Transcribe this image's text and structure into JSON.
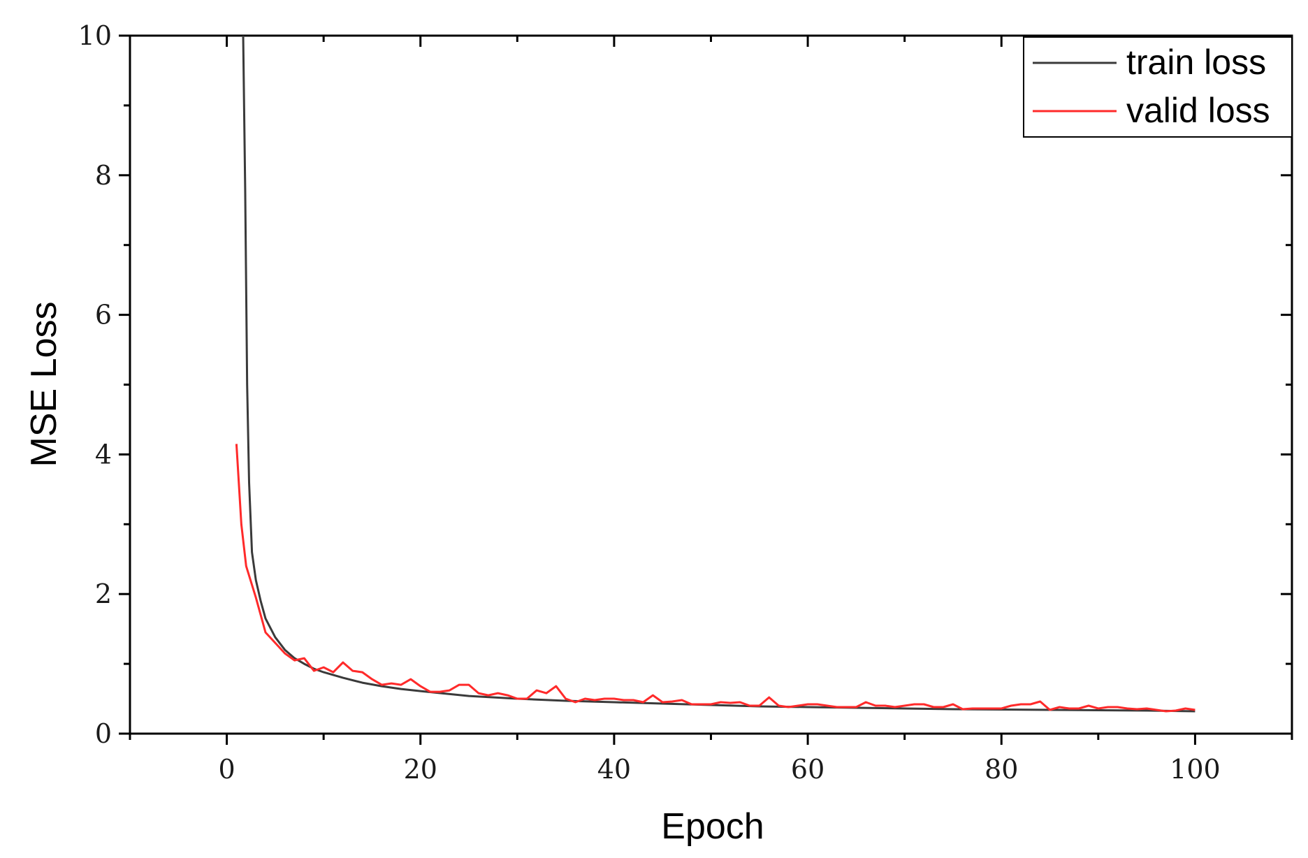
{
  "chart_data": {
    "type": "line",
    "title": "",
    "xlabel": "Epoch",
    "ylabel": "MSE Loss",
    "xlim": [
      -10,
      110
    ],
    "ylim": [
      0,
      10
    ],
    "xticks": [
      0,
      20,
      40,
      60,
      80,
      100
    ],
    "yticks": [
      0,
      2,
      4,
      6,
      8,
      10
    ],
    "x_tick_labels": [
      "0",
      "20",
      "40",
      "60",
      "80",
      "100"
    ],
    "y_tick_labels": [
      "0",
      "2",
      "4",
      "6",
      "8",
      "10"
    ],
    "grid": false,
    "legend": {
      "position": "top-right",
      "entries": [
        "train loss",
        "valid loss"
      ]
    },
    "series": [
      {
        "name": "train loss",
        "color": "#3a3a3a",
        "x": [
          1.5,
          1.9,
          2.1,
          2.3,
          2.6,
          3,
          3.5,
          4,
          5,
          6,
          7,
          8,
          9,
          10,
          12,
          14,
          16,
          18,
          20,
          25,
          30,
          35,
          40,
          45,
          50,
          55,
          60,
          65,
          70,
          75,
          80,
          85,
          90,
          95,
          100
        ],
        "values": [
          12,
          7.8,
          5.0,
          3.6,
          2.6,
          2.2,
          1.9,
          1.65,
          1.38,
          1.2,
          1.08,
          1.0,
          0.93,
          0.88,
          0.8,
          0.73,
          0.68,
          0.64,
          0.61,
          0.54,
          0.5,
          0.47,
          0.45,
          0.43,
          0.41,
          0.39,
          0.38,
          0.37,
          0.36,
          0.35,
          0.345,
          0.34,
          0.335,
          0.33,
          0.32
        ]
      },
      {
        "name": "valid loss",
        "color": "#ff2a2a",
        "x": [
          1,
          1.5,
          2,
          3,
          4,
          5,
          6,
          7,
          8,
          9,
          10,
          11,
          12,
          13,
          14,
          15,
          16,
          17,
          18,
          19,
          20,
          21,
          22,
          23,
          24,
          25,
          26,
          27,
          28,
          29,
          30,
          31,
          32,
          33,
          34,
          35,
          36,
          37,
          38,
          39,
          40,
          41,
          42,
          43,
          44,
          45,
          46,
          47,
          48,
          49,
          50,
          51,
          52,
          53,
          54,
          55,
          56,
          57,
          58,
          59,
          60,
          61,
          62,
          63,
          64,
          65,
          66,
          67,
          68,
          69,
          70,
          71,
          72,
          73,
          74,
          75,
          76,
          77,
          78,
          79,
          80,
          81,
          82,
          83,
          84,
          85,
          86,
          87,
          88,
          89,
          90,
          91,
          92,
          93,
          94,
          95,
          96,
          97,
          98,
          99,
          100
        ],
        "values": [
          4.15,
          3.0,
          2.4,
          1.95,
          1.45,
          1.3,
          1.15,
          1.05,
          1.08,
          0.9,
          0.95,
          0.88,
          1.02,
          0.9,
          0.88,
          0.78,
          0.7,
          0.72,
          0.7,
          0.78,
          0.68,
          0.6,
          0.6,
          0.62,
          0.7,
          0.7,
          0.58,
          0.55,
          0.58,
          0.55,
          0.5,
          0.5,
          0.62,
          0.58,
          0.68,
          0.5,
          0.45,
          0.5,
          0.48,
          0.5,
          0.5,
          0.48,
          0.48,
          0.45,
          0.55,
          0.45,
          0.46,
          0.48,
          0.42,
          0.42,
          0.42,
          0.45,
          0.44,
          0.45,
          0.4,
          0.4,
          0.52,
          0.4,
          0.38,
          0.4,
          0.42,
          0.42,
          0.4,
          0.38,
          0.38,
          0.38,
          0.45,
          0.4,
          0.4,
          0.38,
          0.4,
          0.42,
          0.42,
          0.38,
          0.38,
          0.42,
          0.35,
          0.36,
          0.36,
          0.36,
          0.36,
          0.4,
          0.42,
          0.42,
          0.46,
          0.34,
          0.38,
          0.36,
          0.36,
          0.4,
          0.36,
          0.38,
          0.38,
          0.36,
          0.35,
          0.36,
          0.34,
          0.32,
          0.33,
          0.36,
          0.34
        ]
      }
    ]
  }
}
